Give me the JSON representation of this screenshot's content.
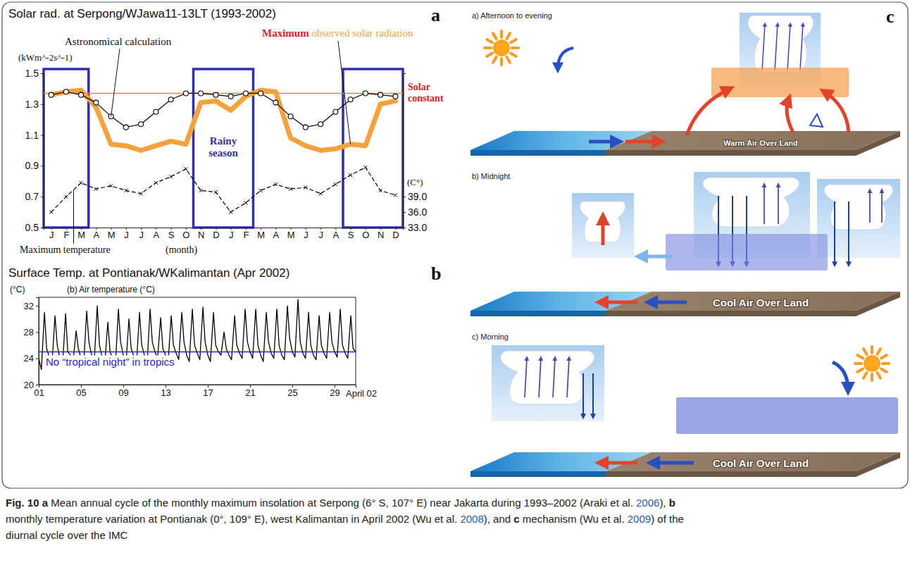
{
  "chart_data": [
    {
      "type": "line",
      "label": "a",
      "title": "Solar rad. at Serpong/WJawa11-13LT (1993-2002)",
      "y_label": "(kWm^-2s^-1)",
      "y2_label": "(C°)",
      "x_label": "(month)",
      "categories": [
        "J",
        "F",
        "M",
        "A",
        "M",
        "J",
        "J",
        "A",
        "S",
        "O",
        "N",
        "D",
        "J",
        "F",
        "M",
        "A",
        "M",
        "J",
        "J",
        "A",
        "S",
        "O",
        "N",
        "D"
      ],
      "ylim": [
        0.5,
        1.5
      ],
      "yticks": [
        0.5,
        0.7,
        0.9,
        1.1,
        1.3,
        1.5
      ],
      "y2lim": [
        33,
        63
      ],
      "y2ticks": [
        {
          "value": 33,
          "label": "33.0"
        },
        {
          "value": 36,
          "label": "36.0"
        },
        {
          "value": 39,
          "label": "39.0"
        }
      ],
      "series": [
        {
          "name": "Maximum observed solar radiation",
          "color": "#f5a23c",
          "line_style": "solid",
          "marker": "none",
          "values": [
            1.36,
            1.38,
            1.39,
            1.28,
            1.04,
            1.03,
            1.0,
            1.03,
            1.06,
            1.04,
            1.31,
            1.32,
            1.26,
            1.35,
            1.39,
            1.38,
            1.08,
            1.03,
            1.0,
            1.01,
            1.04,
            1.03,
            1.3,
            1.32
          ]
        },
        {
          "name": "Astronomical calculation",
          "color": "#000000",
          "line_style": "solid",
          "marker": "circle",
          "values": [
            1.36,
            1.38,
            1.36,
            1.31,
            1.22,
            1.15,
            1.17,
            1.25,
            1.33,
            1.37,
            1.37,
            1.36,
            1.35,
            1.37,
            1.37,
            1.31,
            1.22,
            1.15,
            1.17,
            1.25,
            1.33,
            1.37,
            1.36,
            1.35
          ]
        },
        {
          "name": "Maximum temperature",
          "color": "#000000",
          "line_style": "dashed",
          "marker": "cross",
          "axis": "y2",
          "values": [
            36.0,
            39.0,
            41.7,
            40.5,
            41.1,
            40.2,
            39.6,
            41.7,
            42.9,
            44.4,
            40.2,
            39.9,
            36.0,
            37.8,
            40.2,
            41.4,
            40.5,
            40.8,
            39.6,
            41.4,
            43.2,
            44.7,
            40.2,
            39.3
          ]
        }
      ],
      "reference_lines": [
        {
          "value": 1.37,
          "label": "Solar constant",
          "color": "#f08a24"
        }
      ],
      "rainy_season": {
        "label": "Rainy season",
        "spans": [
          [
            0,
            2
          ],
          [
            10,
            13
          ],
          [
            20,
            23
          ]
        ]
      },
      "grid": false
    },
    {
      "type": "line",
      "label": "b",
      "title": "Surface Temp. at Pontianak/WKalimantan (Apr 2002)",
      "subtitle": "(b) Air temperature (°C)",
      "y_label": "(°C)",
      "x_label": "April 02",
      "x": [
        1,
        1.25,
        1.54,
        1.75,
        2,
        2.25,
        2.54,
        2.75,
        3,
        3.25,
        3.54,
        3.75,
        4,
        4.25,
        4.54,
        4.75,
        5,
        5.25,
        5.54,
        5.75,
        6,
        6.25,
        6.54,
        6.75,
        7,
        7.25,
        7.54,
        7.75,
        8,
        8.25,
        8.54,
        8.75,
        9,
        9.25,
        9.54,
        9.75,
        10,
        10.25,
        10.54,
        10.75,
        11,
        11.25,
        11.54,
        11.75,
        12,
        12.25,
        12.54,
        12.75,
        13,
        13.25,
        13.54,
        13.75,
        14,
        14.25,
        14.54,
        14.75,
        15,
        15.25,
        15.54,
        15.75,
        16,
        16.25,
        16.54,
        16.75,
        17,
        17.25,
        17.54,
        17.75,
        18,
        18.25,
        18.54,
        18.75,
        19,
        19.25,
        19.54,
        19.75,
        20,
        20.25,
        20.54,
        20.75,
        21,
        21.25,
        21.54,
        21.75,
        22,
        22.25,
        22.54,
        22.75,
        23,
        23.25,
        23.54,
        23.75,
        24,
        24.25,
        24.54,
        24.75,
        25,
        25.25,
        25.54,
        25.75,
        26,
        26.25,
        26.54,
        26.75,
        27,
        27.25,
        27.54,
        27.75,
        28,
        28.25,
        28.54,
        28.75,
        29,
        29.25,
        29.54,
        29.75,
        30,
        30.25,
        30.54,
        30.75,
        31
      ],
      "series": [
        {
          "color": "#000000",
          "line_style": "solid",
          "values": [
            24.0,
            22.3,
            31.0,
            25.5,
            24.2,
            23.0,
            30.5,
            26.0,
            24.0,
            22.8,
            30.8,
            25.0,
            24.5,
            23.5,
            28.2,
            25.5,
            24.0,
            23.0,
            31.2,
            26.5,
            24.5,
            23.5,
            32.0,
            26.0,
            24.2,
            23.2,
            29.5,
            25.0,
            24.0,
            22.8,
            31.5,
            26.5,
            24.5,
            23.0,
            30.0,
            25.5,
            24.3,
            23.2,
            31.0,
            26.0,
            24.5,
            23.0,
            31.5,
            26.5,
            25.0,
            24.0,
            30.2,
            25.5,
            24.5,
            23.5,
            30.5,
            26.0,
            24.8,
            23.8,
            31.0,
            26.5,
            24.5,
            23.5,
            31.5,
            26.0,
            24.8,
            23.8,
            31.8,
            26.5,
            24.5,
            23.5,
            31.0,
            26.0,
            25.0,
            24.5,
            28.0,
            25.5,
            24.5,
            23.8,
            30.5,
            26.0,
            24.8,
            24.0,
            31.5,
            26.5,
            25.0,
            24.0,
            31.5,
            26.0,
            24.5,
            23.5,
            31.0,
            26.5,
            24.8,
            24.0,
            31.5,
            26.0,
            24.5,
            23.8,
            32.0,
            27.0,
            25.0,
            24.2,
            33.0,
            26.5,
            24.8,
            24.0,
            31.0,
            26.0,
            24.5,
            23.8,
            30.5,
            26.0,
            24.8,
            24.0,
            31.0,
            26.5,
            25.0,
            24.2,
            31.5,
            26.0,
            24.8,
            24.0,
            30.5,
            25.5,
            25.0
          ]
        }
      ],
      "xlim": [
        1,
        31
      ],
      "xticks": [
        {
          "value": 1,
          "label": "01"
        },
        {
          "value": 5,
          "label": "05"
        },
        {
          "value": 9,
          "label": "09"
        },
        13,
        17,
        21,
        25,
        29
      ],
      "ylim": [
        20,
        33.3
      ],
      "yticks": [
        20,
        24,
        28,
        32
      ],
      "reference_lines": [
        {
          "value": 25,
          "label": "No “tropical night” in tropics",
          "color": "#1f1fe0"
        }
      ],
      "grid": false
    }
  ],
  "diagram": {
    "label": "c",
    "panels": [
      {
        "title": "a) Afternoon to evening",
        "ground_label": "Warm Air Over Land"
      },
      {
        "title": "b) Midnight",
        "ground_label": "Cool Air Over Land"
      },
      {
        "title": "c) Morning",
        "ground_label": "Cool Air Over Land"
      }
    ]
  },
  "caption": {
    "lines": [
      [
        {
          "text": "Fig. 10 a",
          "style": "bold"
        },
        {
          "text": " Mean annual cycle of the monthly maximum insolation at Serpong (6° S, 107° E) near Jakarta during 1993–2002 (Araki et al. ",
          "style": "plain"
        },
        {
          "text": "2006",
          "style": "link"
        },
        {
          "text": "), ",
          "style": "plain"
        },
        {
          "text": "b",
          "style": "bold"
        }
      ],
      [
        {
          "text": "monthly temperature variation at Pontianak (0°, 109° E), west Kalimantan in April 2002 (Wu et al. ",
          "style": "plain"
        },
        {
          "text": "2008",
          "style": "link"
        },
        {
          "text": "), and ",
          "style": "plain"
        },
        {
          "text": "c",
          "style": "bold"
        },
        {
          "text": " mechanism (Wu et al. ",
          "style": "plain"
        },
        {
          "text": "2009",
          "style": "link"
        },
        {
          "text": ") of the",
          "style": "plain"
        }
      ],
      [
        {
          "text": "diurnal cycle over the IMC",
          "style": "plain"
        }
      ]
    ]
  }
}
